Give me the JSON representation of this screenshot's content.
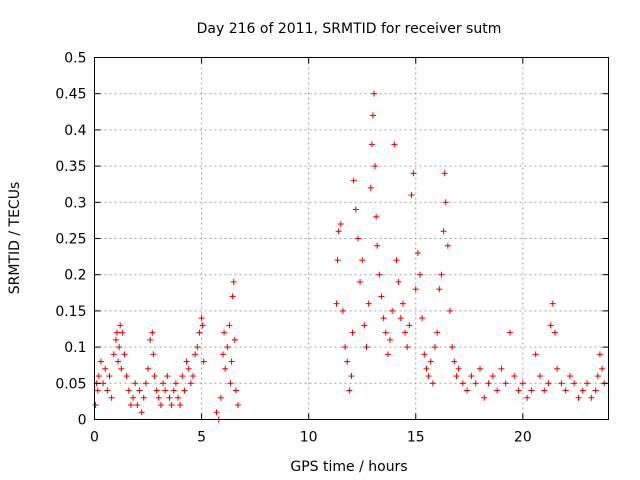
{
  "chart_data": {
    "type": "scatter",
    "title": "Day 216 of 2011, SRMTID for receiver sutm",
    "xlabel": "GPS time / hours",
    "ylabel": "SRMTID / TECUs",
    "xlim": [
      0,
      24
    ],
    "ylim": [
      0,
      0.5
    ],
    "xticks": [
      0,
      5,
      10,
      15,
      20
    ],
    "xtick_labels": [
      "0",
      "5",
      "10",
      "15",
      "20"
    ],
    "yticks": [
      0,
      0.05,
      0.1,
      0.15,
      0.2,
      0.25,
      0.3,
      0.35,
      0.4,
      0.45,
      0.5
    ],
    "ytick_labels": [
      "0",
      "0.05",
      "0.1",
      "0.15",
      "0.2",
      "0.25",
      "0.3",
      "0.35",
      "0.4",
      "0.45",
      "0.5"
    ],
    "grid": true,
    "marker": "+",
    "color": "#e00000",
    "series": [
      {
        "name": "SRMTID",
        "x": [
          0.05,
          0.1,
          0.15,
          0.2,
          0.3,
          0.4,
          0.5,
          0.6,
          0.7,
          0.8,
          0.9,
          1.0,
          1.05,
          1.1,
          1.15,
          1.2,
          1.25,
          1.3,
          1.4,
          1.5,
          1.6,
          1.7,
          1.8,
          1.9,
          2.0,
          2.1,
          2.2,
          2.3,
          2.4,
          2.5,
          2.6,
          2.7,
          2.75,
          2.8,
          2.9,
          3.0,
          3.1,
          3.2,
          3.3,
          3.4,
          3.5,
          3.6,
          3.7,
          3.8,
          3.9,
          4.0,
          4.1,
          4.2,
          4.3,
          4.4,
          4.5,
          4.6,
          4.7,
          4.8,
          4.9,
          5.0,
          5.05,
          5.1,
          5.7,
          5.8,
          5.9,
          6.0,
          6.05,
          6.1,
          6.2,
          6.3,
          6.35,
          6.4,
          6.45,
          6.5,
          6.55,
          6.6,
          6.7,
          11.3,
          11.35,
          11.4,
          11.5,
          11.6,
          11.7,
          11.8,
          11.9,
          12.0,
          12.05,
          12.1,
          12.2,
          12.3,
          12.4,
          12.5,
          12.6,
          12.7,
          12.8,
          12.9,
          12.95,
          13.0,
          13.05,
          13.1,
          13.15,
          13.2,
          13.3,
          13.4,
          13.5,
          13.6,
          13.7,
          13.8,
          13.9,
          14.0,
          14.1,
          14.2,
          14.3,
          14.4,
          14.5,
          14.6,
          14.7,
          14.8,
          14.9,
          15.0,
          15.1,
          15.2,
          15.3,
          15.4,
          15.5,
          15.6,
          15.7,
          15.8,
          15.9,
          16.0,
          16.1,
          16.2,
          16.3,
          16.35,
          16.4,
          16.5,
          16.6,
          16.7,
          16.8,
          16.9,
          17.0,
          17.2,
          17.4,
          17.6,
          17.8,
          18.0,
          18.2,
          18.4,
          18.6,
          18.8,
          19.0,
          19.2,
          19.4,
          19.6,
          19.8,
          20.0,
          20.2,
          20.4,
          20.6,
          20.8,
          21.0,
          21.2,
          21.3,
          21.4,
          21.5,
          21.6,
          21.8,
          22.0,
          22.2,
          22.4,
          22.6,
          22.8,
          23.0,
          23.2,
          23.4,
          23.5,
          23.6,
          23.7,
          23.8
        ],
        "y": [
          0.02,
          0.05,
          0.04,
          0.06,
          0.08,
          0.05,
          0.07,
          0.04,
          0.06,
          0.03,
          0.09,
          0.11,
          0.12,
          0.08,
          0.1,
          0.13,
          0.07,
          0.12,
          0.09,
          0.06,
          0.04,
          0.02,
          0.03,
          0.05,
          0.02,
          0.04,
          0.01,
          0.03,
          0.05,
          0.07,
          0.11,
          0.12,
          0.09,
          0.06,
          0.04,
          0.03,
          0.02,
          0.05,
          0.04,
          0.06,
          0.03,
          0.02,
          0.04,
          0.05,
          0.03,
          0.02,
          0.06,
          0.04,
          0.08,
          0.07,
          0.05,
          0.06,
          0.09,
          0.1,
          0.12,
          0.14,
          0.13,
          0.08,
          0.01,
          0.0,
          0.03,
          0.09,
          0.12,
          0.07,
          0.1,
          0.13,
          0.05,
          0.08,
          0.17,
          0.19,
          0.11,
          0.04,
          0.02,
          0.16,
          0.22,
          0.26,
          0.27,
          0.15,
          0.1,
          0.08,
          0.04,
          0.06,
          0.12,
          0.33,
          0.29,
          0.25,
          0.19,
          0.22,
          0.13,
          0.1,
          0.16,
          0.32,
          0.38,
          0.42,
          0.45,
          0.35,
          0.28,
          0.24,
          0.2,
          0.17,
          0.14,
          0.12,
          0.09,
          0.11,
          0.15,
          0.38,
          0.22,
          0.19,
          0.14,
          0.16,
          0.12,
          0.1,
          0.13,
          0.31,
          0.34,
          0.18,
          0.23,
          0.2,
          0.14,
          0.09,
          0.07,
          0.06,
          0.08,
          0.05,
          0.1,
          0.12,
          0.18,
          0.2,
          0.26,
          0.34,
          0.3,
          0.24,
          0.15,
          0.1,
          0.08,
          0.06,
          0.07,
          0.05,
          0.04,
          0.06,
          0.05,
          0.07,
          0.03,
          0.05,
          0.06,
          0.04,
          0.07,
          0.05,
          0.12,
          0.06,
          0.04,
          0.05,
          0.03,
          0.04,
          0.09,
          0.06,
          0.04,
          0.05,
          0.13,
          0.16,
          0.12,
          0.07,
          0.05,
          0.04,
          0.06,
          0.05,
          0.03,
          0.04,
          0.05,
          0.03,
          0.04,
          0.06,
          0.09,
          0.07,
          0.05
        ]
      }
    ]
  }
}
